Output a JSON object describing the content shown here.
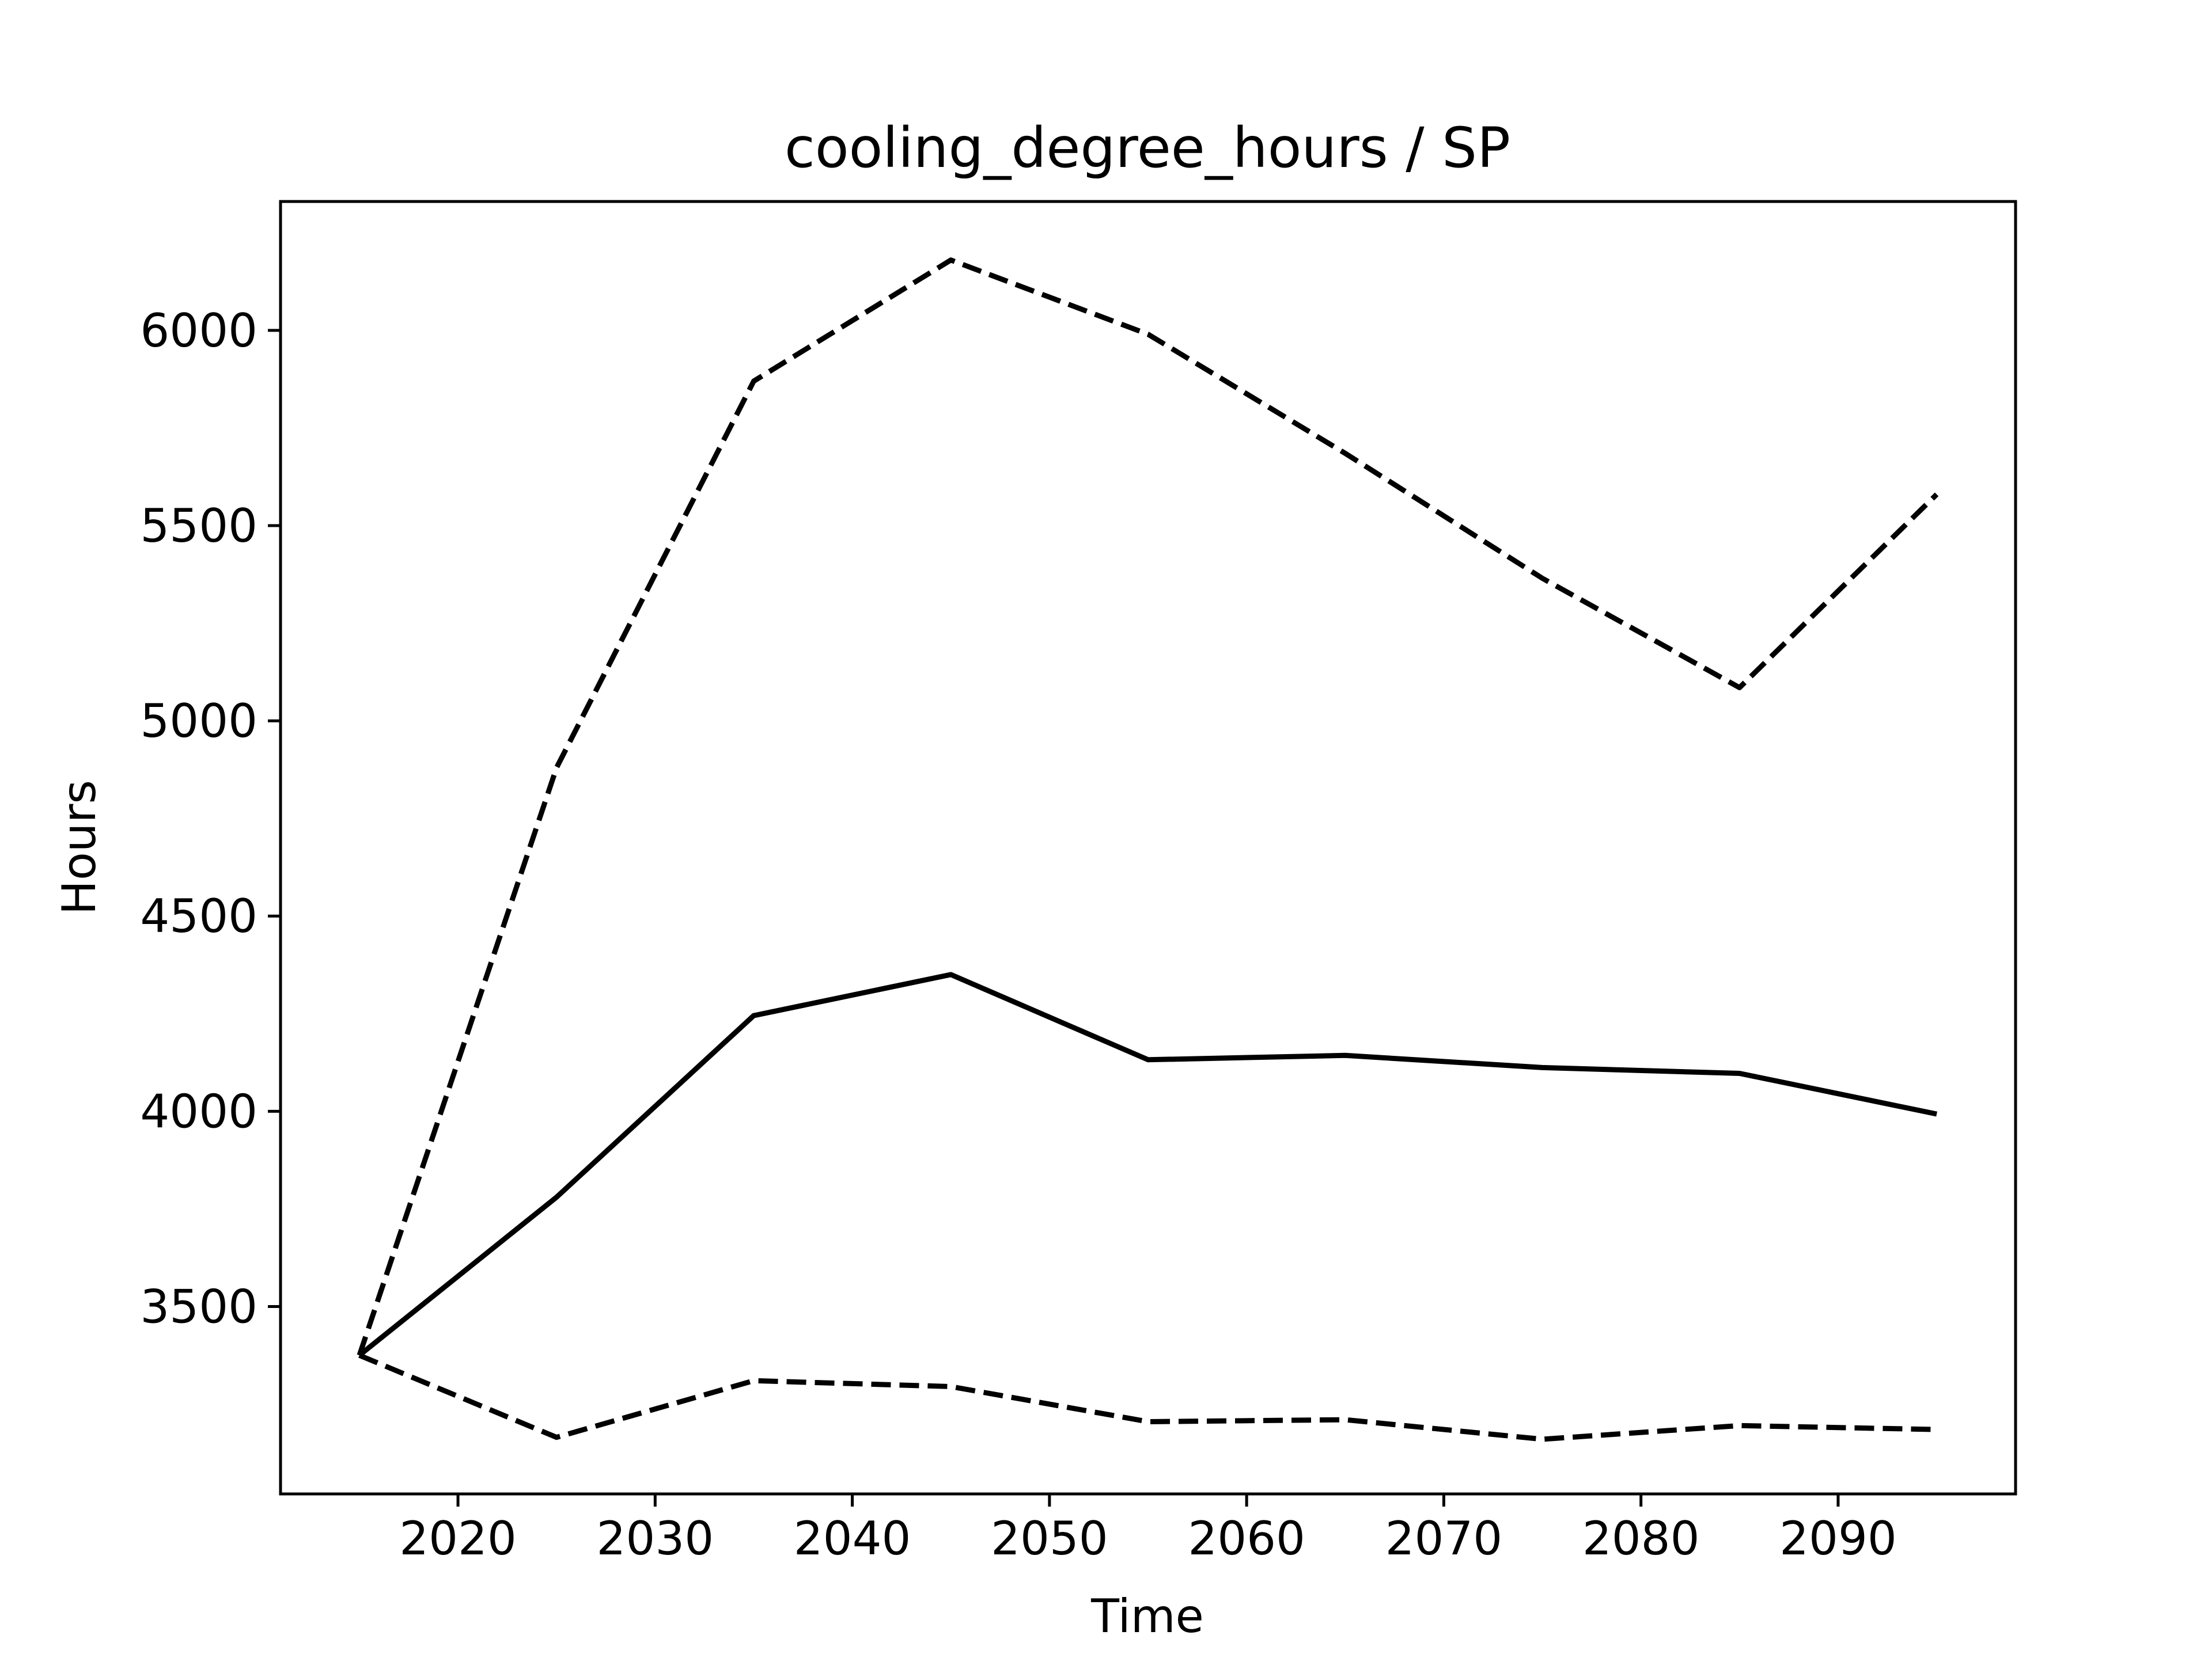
{
  "chart_data": {
    "type": "line",
    "title": "cooling_degree_hours / SP",
    "xlabel": "Time",
    "ylabel": "Hours",
    "xlim": [
      2011,
      2099
    ],
    "ylim": [
      3020,
      6330
    ],
    "xticks": [
      2020,
      2030,
      2040,
      2050,
      2060,
      2070,
      2080,
      2090
    ],
    "yticks": [
      3500,
      4000,
      4500,
      5000,
      5500,
      6000
    ],
    "x": [
      2015,
      2025,
      2035,
      2045,
      2055,
      2065,
      2075,
      2085,
      2095
    ],
    "series": [
      {
        "style": "solid",
        "color": "#000000",
        "values": [
          3375,
          3780,
          4245,
          4350,
          4132,
          4143,
          4112,
          4097,
          3993
        ]
      },
      {
        "style": "dashed",
        "color": "#000000",
        "values": [
          3375,
          4880,
          5870,
          6180,
          5990,
          5685,
          5365,
          5085,
          5580
        ]
      },
      {
        "style": "dashed",
        "color": "#000000",
        "values": [
          3375,
          3165,
          3310,
          3295,
          3205,
          3210,
          3160,
          3195,
          3185
        ]
      }
    ],
    "grid": false,
    "legend": false
  }
}
